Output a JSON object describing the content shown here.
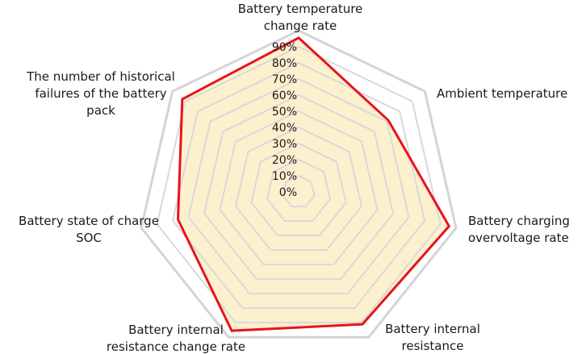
{
  "chart_data": {
    "type": "radar",
    "title": "",
    "axes": [
      {
        "label": [
          "Battery temperature",
          "change rate"
        ],
        "value": 0.86
      },
      {
        "label": [
          "Ambient temperature"
        ],
        "value": 0.64
      },
      {
        "label": [
          "Battery charging",
          "overvoltage rate"
        ],
        "value": 0.86
      },
      {
        "label": [
          "Battery internal",
          "resistance"
        ],
        "value": 0.82
      },
      {
        "label": [
          "Battery internal",
          "resistance change rate"
        ],
        "value": 0.86
      },
      {
        "label": [
          "Battery state of charge",
          "SOC"
        ],
        "value": 0.69
      },
      {
        "label": [
          "The number of historical",
          "failures of the battery",
          "pack"
        ],
        "value": 0.83
      }
    ],
    "ticks": [
      "0%",
      "10%",
      "20%",
      "30%",
      "40%",
      "50%",
      "60%",
      "70%",
      "80%",
      "90%"
    ],
    "rmax": 0.9,
    "grid": true,
    "legend": "none",
    "colors": {
      "fill": "#fdf0cf",
      "stroke": "#e8141c",
      "grid": "#d9d9d9"
    }
  }
}
